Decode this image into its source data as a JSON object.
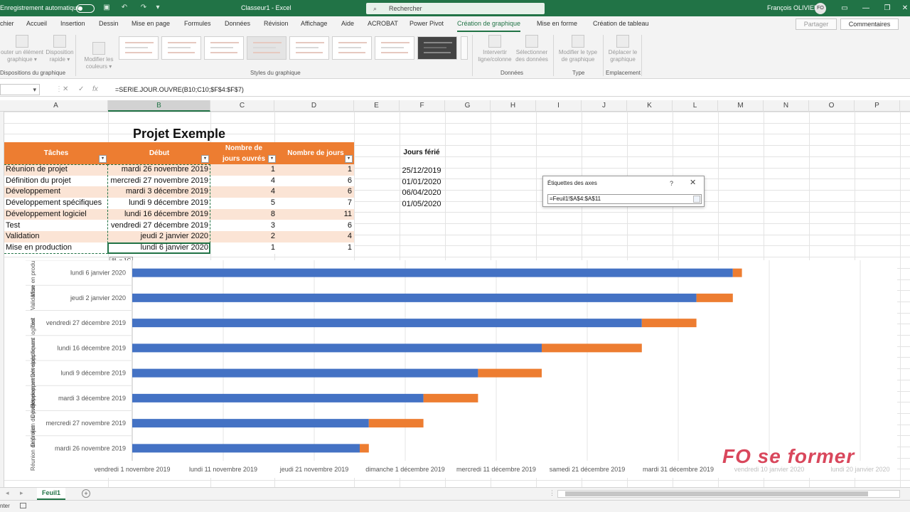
{
  "titlebar": {
    "autosave_label": "Enregistrement automatique",
    "title": "Classeur1  -  Excel",
    "search_placeholder": "Rechercher",
    "user_name": "François OLIVIER",
    "user_initials": "FO"
  },
  "tabs": [
    "chier",
    "Accueil",
    "Insertion",
    "Dessin",
    "Mise en page",
    "Formules",
    "Données",
    "Révision",
    "Affichage",
    "Aide",
    "ACROBAT",
    "Power Pivot",
    "Création de graphique",
    "Mise en forme",
    "Création de tableau"
  ],
  "active_tab": "Création de graphique",
  "share_label": "Partager",
  "comments_label": "Commentaires",
  "ribbon": {
    "add_element": [
      "outer un élément",
      "graphique ▾"
    ],
    "quick_layout": [
      "Disposition",
      "rapide ▾"
    ],
    "change_colors": [
      "Modifier les",
      "couleurs ▾"
    ],
    "switch_rowcol": [
      "Intervertir",
      "ligne/colonne"
    ],
    "select_data": [
      "Sélectionner",
      "des données"
    ],
    "change_type": [
      "Modifier le type",
      "de graphique"
    ],
    "move_chart": [
      "Déplacer le",
      "graphique"
    ],
    "groups": {
      "layouts": "Dispositions du graphique",
      "styles": "Styles du graphique",
      "data": "Données",
      "type": "Type",
      "location": "Emplacement"
    }
  },
  "formula_bar": {
    "formula": "=SERIE.JOUR.OUVRE(B10;C10;$F$4:$F$7)"
  },
  "columns": [
    "A",
    "B",
    "C",
    "D",
    "E",
    "F",
    "G",
    "H",
    "I",
    "J",
    "K",
    "L",
    "M",
    "N",
    "O",
    "P"
  ],
  "sheet": {
    "title": "Projet Exemple",
    "headers": [
      "Tâches",
      "Début",
      "Nombre de jours ouvrés",
      "Nombre de jours"
    ],
    "rows": [
      {
        "task": "Réunion de projet",
        "start": "mardi 26 novembre 2019",
        "workdays": "1",
        "days": "1"
      },
      {
        "task": "Définition du projet",
        "start": "mercredi 27 novembre 2019",
        "workdays": "4",
        "days": "6"
      },
      {
        "task": "Développement",
        "start": "mardi 3 décembre 2019",
        "workdays": "4",
        "days": "6"
      },
      {
        "task": "Développement spécifiques",
        "start": "lundi 9 décembre 2019",
        "workdays": "5",
        "days": "7"
      },
      {
        "task": "Développement logiciel",
        "start": "lundi 16 décembre 2019",
        "workdays": "8",
        "days": "11"
      },
      {
        "task": "Test",
        "start": "vendredi 27 décembre 2019",
        "workdays": "3",
        "days": "6"
      },
      {
        "task": "Validation",
        "start": "jeudi 2 janvier 2020",
        "workdays": "2",
        "days": "4"
      },
      {
        "task": "Mise en production",
        "start": "lundi 6 janvier 2020",
        "workdays": "1",
        "days": "1"
      }
    ],
    "holidays_title": "Jours férié",
    "holidays": [
      "25/12/2019",
      "01/01/2020",
      "06/04/2020",
      "01/05/2020"
    ],
    "size_tip": "8L x 1C"
  },
  "chart_data": {
    "type": "bar",
    "orientation": "horizontal",
    "stacked": true,
    "categories": [
      {
        "outer": "Réunion de projet",
        "inner": "mardi 26 novembre 2019"
      },
      {
        "outer": "Définition du projet",
        "inner": "mercredi 27 novembre 2019"
      },
      {
        "outer": "Développement",
        "inner": "mardi 3 décembre 2019"
      },
      {
        "outer": "Développement spécifiques",
        "inner": "lundi 9 décembre 2019"
      },
      {
        "outer": "Développement logiciel",
        "inner": "lundi 16 décembre 2019"
      },
      {
        "outer": "Test",
        "inner": "vendredi 27 décembre 2019"
      },
      {
        "outer": "Validation",
        "inner": "jeudi 2 janvier 2020"
      },
      {
        "outer": "Mise en production",
        "inner": "lundi 6 janvier 2020"
      }
    ],
    "series": [
      {
        "start_dates": [
          "2019-11-26",
          "2019-11-27",
          "2019-12-03",
          "2019-12-09",
          "2019-12-16",
          "2019-12-27",
          "2020-01-02",
          "2020-01-06"
        ],
        "color": "#4472c4"
      },
      {
        "values": [
          1,
          6,
          6,
          7,
          11,
          6,
          4,
          1
        ],
        "color": "#ed7d31"
      }
    ],
    "x_axis_ticks": [
      {
        "date": "2019-11-01",
        "label": "vendredi 1 novembre 2019"
      },
      {
        "date": "2019-11-11",
        "label": "lundi 11 novembre 2019"
      },
      {
        "date": "2019-11-21",
        "label": "jeudi 21 novembre 2019"
      },
      {
        "date": "2019-12-01",
        "label": "dimanche 1 décembre 2019"
      },
      {
        "date": "2019-12-11",
        "label": "mercredi 11 décembre 2019"
      },
      {
        "date": "2019-12-21",
        "label": "samedi 21 décembre 2019"
      },
      {
        "date": "2019-12-31",
        "label": "mardi 31 décembre 2019"
      },
      {
        "date": "2020-01-10",
        "label": "vendredi 10 janvier 2020"
      },
      {
        "date": "2020-01-20",
        "label": "lundi 20 janvier 2020"
      }
    ],
    "xlim": [
      "2019-11-01",
      "2020-01-20"
    ],
    "grid": true,
    "legend": "none",
    "title": "",
    "xlabel": "",
    "ylabel": ""
  },
  "dialog": {
    "title": "Étiquettes des axes",
    "help": "?",
    "close": "✕",
    "value": "=Feuil1!$A$4:$A$11"
  },
  "watermark": "FO se former",
  "sheet_tab": "Feuil1",
  "status": "nter"
}
